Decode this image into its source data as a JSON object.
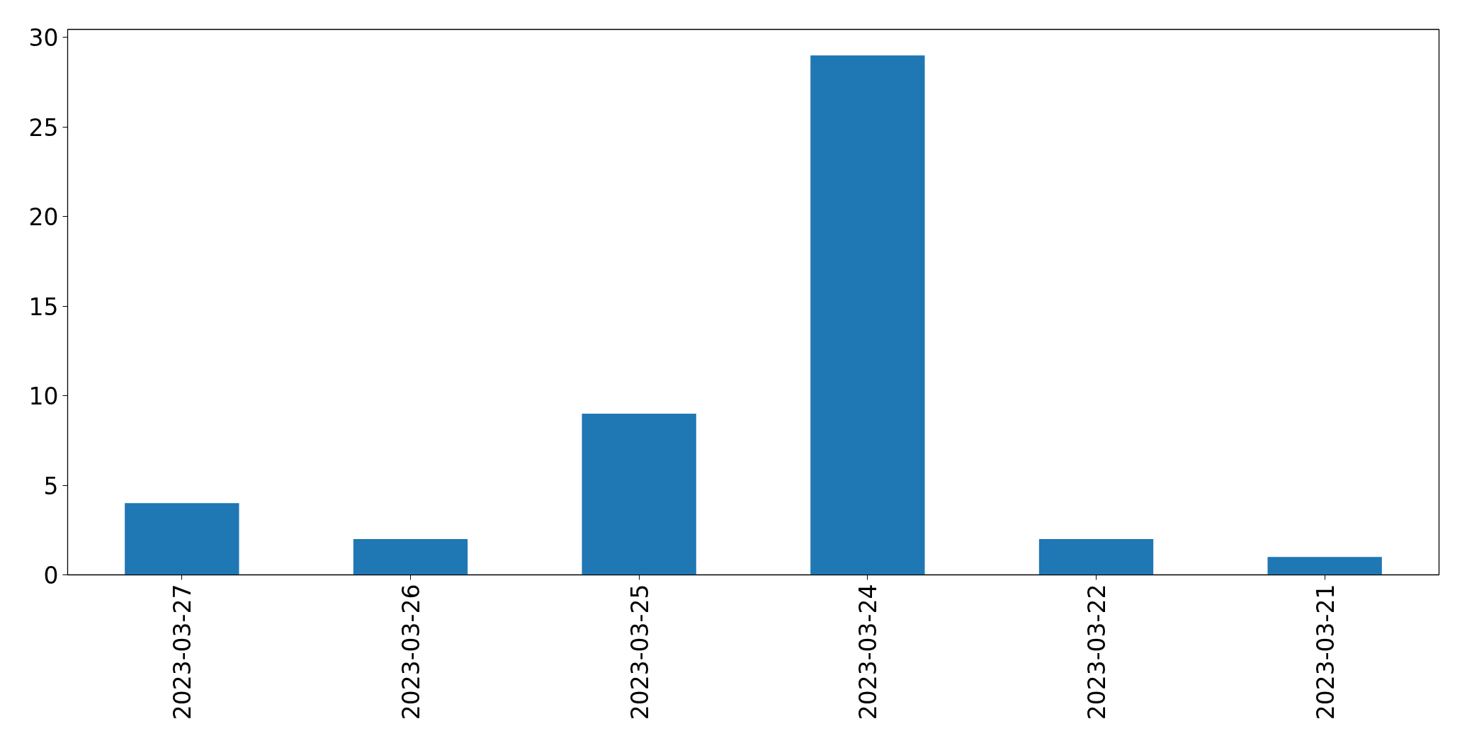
{
  "chart_data": {
    "type": "bar",
    "categories": [
      "2023-03-27",
      "2023-03-26",
      "2023-03-25",
      "2023-03-24",
      "2023-03-22",
      "2023-03-21"
    ],
    "values": [
      4,
      2,
      9,
      29,
      2,
      1
    ],
    "color": "#1f77b4",
    "ylim": [
      0,
      30.45
    ],
    "yticks": [
      0,
      5,
      10,
      15,
      20,
      25,
      30
    ]
  }
}
